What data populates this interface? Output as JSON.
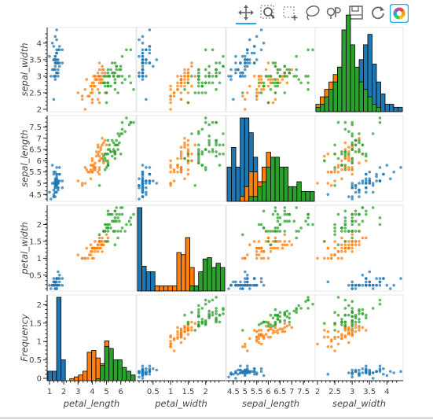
{
  "toolbar": {
    "tools": [
      {
        "name": "pan-tool",
        "icon": "move-arrows-icon",
        "active": true
      },
      {
        "name": "box-zoom-tool",
        "icon": "box-zoom-icon",
        "active": false
      },
      {
        "name": "box-select-tool",
        "icon": "box-select-icon",
        "active": false
      },
      {
        "name": "lasso-select-tool",
        "icon": "lasso-icon",
        "active": false
      },
      {
        "name": "wheel-zoom-tool",
        "icon": "wheel-zoom-icon",
        "active": false
      },
      {
        "name": "save-tool",
        "icon": "save-icon",
        "active": false
      },
      {
        "name": "reset-tool",
        "icon": "reset-icon",
        "active": false
      },
      {
        "name": "bokeh-logo",
        "icon": "bokeh-logo-icon",
        "active": false
      }
    ],
    "active_color": "#26aae1"
  },
  "chart_data": {
    "type": "scatter",
    "title": "",
    "variables": [
      "petal_length",
      "petal_width",
      "sepal_length",
      "sepal_width"
    ],
    "row_variables": [
      "sepal_width",
      "sepal_length",
      "petal_width",
      "Frequency"
    ],
    "col_variables": [
      "petal_length",
      "petal_width",
      "sepal_length",
      "sepal_width"
    ],
    "colors": {
      "setosa": "#1f77b4",
      "versicolor": "#ff7f0e",
      "virginica": "#2ca02c"
    },
    "ranges": {
      "petal_length": [
        1.0,
        6.9
      ],
      "petal_width": [
        0.1,
        2.5
      ],
      "sepal_length": [
        4.3,
        7.9
      ],
      "sepal_width": [
        2.0,
        4.4
      ]
    },
    "frequency_ticks": [
      0,
      0.5,
      1,
      1.5,
      2
    ],
    "ticks": {
      "petal_length": [
        1,
        2,
        3,
        4,
        5,
        6
      ],
      "petal_width": [
        0.5,
        1,
        1.5,
        2
      ],
      "sepal_length": [
        4.5,
        5,
        5.5,
        6,
        6.5,
        7,
        7.5
      ],
      "sepal_width": [
        2,
        2.5,
        3,
        3.5,
        4
      ]
    },
    "tick_labels": {
      "petal_length": [
        "1",
        "2",
        "3",
        "4",
        "5",
        "6"
      ],
      "petal_width": [
        "0.5",
        "1",
        "1.5",
        "2"
      ],
      "sepal_length": [
        "4.5",
        "5",
        "5.5",
        "6",
        "6.5",
        "7",
        "7.5"
      ],
      "sepal_width": [
        "2",
        "2.5",
        "3",
        "3.5",
        "4"
      ],
      "sepal_length_y": [
        "4.5",
        "5",
        "5.5",
        "6",
        "6.5",
        "7",
        "7.5"
      ],
      "sepal_width_y": [
        "2",
        "2.5",
        "3",
        "3.5",
        "4"
      ],
      "petal_width_y": [
        "0.5",
        "1",
        "1.5",
        "2"
      ],
      "frequency_y": [
        "0",
        "0.5",
        "1",
        "1.5",
        "2"
      ]
    },
    "histograms": {
      "petal_length": {
        "setosa": [
          0.25,
          0.25,
          2.2,
          0.55,
          0,
          0,
          0,
          0,
          0,
          0,
          0,
          0,
          0,
          0,
          0,
          0,
          0,
          0,
          0,
          0
        ],
        "versicolor": [
          0,
          0,
          0,
          0,
          0,
          0.05,
          0.1,
          0.15,
          0.25,
          0.75,
          0.8,
          0.6,
          0.45,
          1.05,
          0.15,
          0,
          0,
          0,
          0,
          0
        ],
        "virginica": [
          0,
          0,
          0,
          0,
          0,
          0,
          0,
          0,
          0,
          0,
          0,
          0.05,
          0.4,
          0.9,
          0.85,
          0.55,
          0.55,
          0.35,
          0.25,
          0.15
        ]
      },
      "petal_width": {
        "setosa": [
          1.95,
          0.58,
          0.45,
          0.45,
          0.12,
          0,
          0,
          0,
          0,
          0,
          0,
          0,
          0,
          0,
          0,
          0,
          0,
          0,
          0,
          0
        ],
        "versicolor": [
          0,
          0,
          0,
          0,
          0.12,
          0.12,
          0.12,
          0.12,
          0.12,
          0.9,
          0.85,
          1.25,
          0.55,
          0.12,
          0.12,
          0,
          0,
          0,
          0,
          0
        ],
        "virginica": [
          0,
          0,
          0,
          0,
          0,
          0,
          0,
          0,
          0,
          0,
          0,
          0,
          0.12,
          0.12,
          0.45,
          0.75,
          0.78,
          0.55,
          0.65,
          0.55
        ]
      },
      "sepal_length": {
        "setosa": [
          0.35,
          0.55,
          0.35,
          0.85,
          0.85,
          0.7,
          0.45,
          0.2,
          0.05,
          0,
          0,
          0,
          0,
          0,
          0,
          0,
          0,
          0,
          0,
          0
        ],
        "versicolor": [
          0,
          0,
          0,
          0.05,
          0.15,
          0.3,
          0.3,
          0.2,
          0.35,
          0.5,
          0.45,
          0.35,
          0.2,
          0.15,
          0.05,
          0,
          0,
          0,
          0,
          0
        ],
        "virginica": [
          0,
          0,
          0,
          0,
          0,
          0.05,
          0.05,
          0.15,
          0.2,
          0.35,
          0.45,
          0.45,
          0.35,
          0.35,
          0.15,
          0.15,
          0.2,
          0.1,
          0.1,
          0.1
        ]
      },
      "sepal_width": {
        "setosa": [
          0,
          0,
          0,
          0,
          0,
          0.02,
          0.04,
          0.12,
          0.18,
          0.28,
          0.35,
          0.45,
          0.52,
          0.32,
          0.2,
          0.12,
          0.05,
          0.05,
          0.03,
          0.03
        ],
        "versicolor": [
          0.05,
          0.1,
          0.15,
          0.2,
          0.25,
          0.3,
          0.42,
          0.35,
          0.2,
          0.12,
          0.05,
          0,
          0,
          0,
          0,
          0,
          0,
          0,
          0,
          0
        ],
        "virginica": [
          0.03,
          0.05,
          0.1,
          0.15,
          0.2,
          0.3,
          0.55,
          0.65,
          0.45,
          0.3,
          0.2,
          0.15,
          0.1,
          0.05,
          0.03,
          0,
          0,
          0,
          0,
          0
        ]
      }
    },
    "hist_ylims": {
      "petal_length": [
        0,
        2.2
      ],
      "petal_width": [
        0,
        1.95
      ],
      "sepal_length": [
        0,
        0.85
      ],
      "sepal_width": [
        0,
        0.55
      ]
    },
    "points": {
      "setosa": [
        [
          1.4,
          0.2,
          5.1,
          3.5
        ],
        [
          1.4,
          0.2,
          4.9,
          3.0
        ],
        [
          1.3,
          0.2,
          4.7,
          3.2
        ],
        [
          1.5,
          0.2,
          4.6,
          3.1
        ],
        [
          1.4,
          0.2,
          5.0,
          3.6
        ],
        [
          1.7,
          0.4,
          5.4,
          3.9
        ],
        [
          1.4,
          0.3,
          4.6,
          3.4
        ],
        [
          1.5,
          0.2,
          5.0,
          3.4
        ],
        [
          1.4,
          0.2,
          4.4,
          2.9
        ],
        [
          1.5,
          0.1,
          4.9,
          3.1
        ],
        [
          1.5,
          0.2,
          5.4,
          3.7
        ],
        [
          1.6,
          0.2,
          4.8,
          3.4
        ],
        [
          1.4,
          0.1,
          4.8,
          3.0
        ],
        [
          1.1,
          0.1,
          4.3,
          3.0
        ],
        [
          1.2,
          0.2,
          5.8,
          4.0
        ],
        [
          1.5,
          0.4,
          5.7,
          4.4
        ],
        [
          1.3,
          0.4,
          5.4,
          3.9
        ],
        [
          1.4,
          0.3,
          5.1,
          3.5
        ],
        [
          1.7,
          0.3,
          5.7,
          3.8
        ],
        [
          1.5,
          0.3,
          5.1,
          3.8
        ],
        [
          1.7,
          0.2,
          5.4,
          3.4
        ],
        [
          1.5,
          0.4,
          5.1,
          3.7
        ],
        [
          1.0,
          0.2,
          4.6,
          3.6
        ],
        [
          1.7,
          0.5,
          5.1,
          3.3
        ],
        [
          1.9,
          0.2,
          4.8,
          3.4
        ],
        [
          1.6,
          0.2,
          5.0,
          3.0
        ],
        [
          1.6,
          0.4,
          5.0,
          3.4
        ],
        [
          1.5,
          0.2,
          5.2,
          3.5
        ],
        [
          1.4,
          0.2,
          5.2,
          3.4
        ],
        [
          1.6,
          0.2,
          4.7,
          3.2
        ],
        [
          1.6,
          0.2,
          4.8,
          3.1
        ],
        [
          1.5,
          0.4,
          5.4,
          3.4
        ],
        [
          1.5,
          0.1,
          5.2,
          4.1
        ],
        [
          1.4,
          0.2,
          5.5,
          4.2
        ],
        [
          1.5,
          0.2,
          4.9,
          3.1
        ],
        [
          1.2,
          0.2,
          5.0,
          3.2
        ],
        [
          1.3,
          0.2,
          5.5,
          3.5
        ],
        [
          1.4,
          0.1,
          4.9,
          3.6
        ],
        [
          1.3,
          0.2,
          4.4,
          3.0
        ],
        [
          1.5,
          0.2,
          5.1,
          3.4
        ],
        [
          1.3,
          0.3,
          5.0,
          3.5
        ],
        [
          1.3,
          0.3,
          4.5,
          2.3
        ],
        [
          1.3,
          0.2,
          4.4,
          3.2
        ],
        [
          1.6,
          0.6,
          5.0,
          3.5
        ],
        [
          1.9,
          0.4,
          5.1,
          3.8
        ],
        [
          1.4,
          0.3,
          4.8,
          3.0
        ],
        [
          1.6,
          0.2,
          5.1,
          3.8
        ],
        [
          1.4,
          0.2,
          4.6,
          3.2
        ],
        [
          1.5,
          0.2,
          5.3,
          3.7
        ],
        [
          1.4,
          0.2,
          5.0,
          3.3
        ]
      ],
      "versicolor": [
        [
          4.7,
          1.4,
          7.0,
          3.2
        ],
        [
          4.5,
          1.5,
          6.4,
          3.2
        ],
        [
          4.9,
          1.5,
          6.9,
          3.1
        ],
        [
          4.0,
          1.3,
          5.5,
          2.3
        ],
        [
          4.6,
          1.5,
          6.5,
          2.8
        ],
        [
          4.5,
          1.3,
          5.7,
          2.8
        ],
        [
          4.7,
          1.6,
          6.3,
          3.3
        ],
        [
          3.3,
          1.0,
          4.9,
          2.4
        ],
        [
          4.6,
          1.3,
          6.6,
          2.9
        ],
        [
          3.9,
          1.4,
          5.2,
          2.7
        ],
        [
          3.5,
          1.0,
          5.0,
          2.0
        ],
        [
          4.2,
          1.5,
          5.9,
          3.0
        ],
        [
          4.0,
          1.0,
          6.0,
          2.2
        ],
        [
          4.7,
          1.4,
          6.1,
          2.9
        ],
        [
          3.6,
          1.3,
          5.6,
          2.9
        ],
        [
          4.4,
          1.4,
          6.7,
          3.1
        ],
        [
          4.5,
          1.5,
          5.6,
          3.0
        ],
        [
          4.1,
          1.0,
          5.8,
          2.7
        ],
        [
          4.5,
          1.5,
          6.2,
          2.2
        ],
        [
          3.9,
          1.1,
          5.6,
          2.5
        ],
        [
          4.8,
          1.8,
          5.9,
          3.2
        ],
        [
          4.0,
          1.3,
          6.1,
          2.8
        ],
        [
          4.9,
          1.5,
          6.3,
          2.5
        ],
        [
          4.7,
          1.2,
          6.1,
          2.8
        ],
        [
          4.3,
          1.3,
          6.4,
          2.9
        ],
        [
          4.4,
          1.4,
          6.6,
          3.0
        ],
        [
          4.8,
          1.4,
          6.8,
          2.8
        ],
        [
          5.0,
          1.7,
          6.7,
          3.0
        ],
        [
          4.5,
          1.5,
          6.0,
          2.9
        ],
        [
          3.5,
          1.0,
          5.7,
          2.6
        ],
        [
          3.8,
          1.1,
          5.5,
          2.4
        ],
        [
          3.7,
          1.0,
          5.5,
          2.4
        ],
        [
          3.9,
          1.2,
          5.8,
          2.7
        ],
        [
          5.1,
          1.6,
          6.0,
          2.7
        ],
        [
          4.5,
          1.5,
          5.4,
          3.0
        ],
        [
          4.5,
          1.6,
          6.0,
          3.4
        ],
        [
          4.7,
          1.5,
          6.7,
          3.1
        ],
        [
          4.4,
          1.3,
          6.3,
          2.3
        ],
        [
          4.1,
          1.3,
          5.6,
          3.0
        ],
        [
          4.0,
          1.3,
          5.5,
          2.5
        ],
        [
          4.4,
          1.2,
          5.5,
          2.6
        ],
        [
          4.6,
          1.4,
          6.1,
          3.0
        ],
        [
          4.0,
          1.2,
          5.8,
          2.6
        ],
        [
          3.3,
          1.0,
          5.0,
          2.3
        ],
        [
          4.2,
          1.3,
          5.6,
          2.7
        ],
        [
          4.2,
          1.2,
          5.7,
          3.0
        ],
        [
          4.2,
          1.3,
          5.7,
          2.9
        ],
        [
          4.3,
          1.3,
          6.2,
          2.9
        ],
        [
          3.0,
          1.1,
          5.1,
          2.5
        ],
        [
          4.1,
          1.3,
          5.7,
          2.8
        ]
      ],
      "virginica": [
        [
          6.0,
          2.5,
          6.3,
          3.3
        ],
        [
          5.1,
          1.9,
          5.8,
          2.7
        ],
        [
          5.9,
          2.1,
          7.1,
          3.0
        ],
        [
          5.6,
          1.8,
          6.3,
          2.9
        ],
        [
          5.8,
          2.2,
          6.5,
          3.0
        ],
        [
          6.6,
          2.1,
          7.6,
          3.0
        ],
        [
          4.5,
          1.7,
          4.9,
          2.5
        ],
        [
          6.3,
          1.8,
          7.3,
          2.9
        ],
        [
          5.8,
          1.8,
          6.7,
          2.5
        ],
        [
          6.1,
          2.5,
          7.2,
          3.6
        ],
        [
          5.1,
          2.0,
          6.5,
          3.2
        ],
        [
          5.3,
          1.9,
          6.4,
          2.7
        ],
        [
          5.5,
          2.1,
          6.8,
          3.0
        ],
        [
          5.0,
          2.0,
          5.7,
          2.5
        ],
        [
          5.1,
          2.4,
          5.8,
          2.8
        ],
        [
          5.3,
          2.3,
          6.4,
          3.2
        ],
        [
          5.5,
          1.8,
          6.5,
          3.0
        ],
        [
          6.7,
          2.2,
          7.7,
          3.8
        ],
        [
          6.9,
          2.3,
          7.7,
          2.6
        ],
        [
          5.0,
          1.5,
          6.0,
          2.2
        ],
        [
          5.7,
          2.3,
          6.9,
          3.2
        ],
        [
          4.9,
          2.0,
          5.6,
          2.8
        ],
        [
          6.7,
          2.0,
          7.7,
          2.8
        ],
        [
          4.9,
          1.8,
          6.3,
          2.7
        ],
        [
          5.7,
          2.1,
          6.7,
          3.3
        ],
        [
          6.0,
          1.8,
          7.2,
          3.2
        ],
        [
          4.8,
          1.8,
          6.2,
          2.8
        ],
        [
          4.9,
          1.8,
          6.1,
          3.0
        ],
        [
          5.6,
          2.1,
          6.4,
          2.8
        ],
        [
          5.8,
          1.6,
          7.2,
          3.0
        ],
        [
          6.1,
          1.9,
          7.4,
          2.8
        ],
        [
          6.4,
          2.0,
          7.9,
          3.8
        ],
        [
          5.6,
          2.2,
          6.4,
          2.8
        ],
        [
          5.1,
          1.5,
          6.3,
          2.8
        ],
        [
          5.6,
          1.4,
          6.1,
          2.6
        ],
        [
          6.1,
          2.3,
          7.7,
          3.0
        ],
        [
          5.6,
          2.4,
          6.3,
          3.4
        ],
        [
          5.5,
          1.8,
          6.4,
          3.1
        ],
        [
          4.8,
          1.8,
          6.0,
          3.0
        ],
        [
          5.4,
          2.1,
          6.9,
          3.1
        ],
        [
          5.6,
          2.4,
          6.7,
          3.1
        ],
        [
          5.1,
          2.3,
          6.9,
          3.1
        ],
        [
          5.1,
          1.9,
          5.8,
          2.7
        ],
        [
          5.9,
          2.3,
          6.8,
          3.2
        ],
        [
          5.7,
          2.5,
          6.7,
          3.3
        ],
        [
          5.2,
          2.3,
          6.7,
          3.0
        ],
        [
          5.0,
          1.9,
          6.3,
          2.5
        ],
        [
          5.2,
          2.0,
          6.5,
          3.0
        ],
        [
          5.4,
          2.3,
          6.2,
          3.4
        ],
        [
          5.1,
          1.8,
          5.9,
          3.0
        ]
      ]
    }
  }
}
